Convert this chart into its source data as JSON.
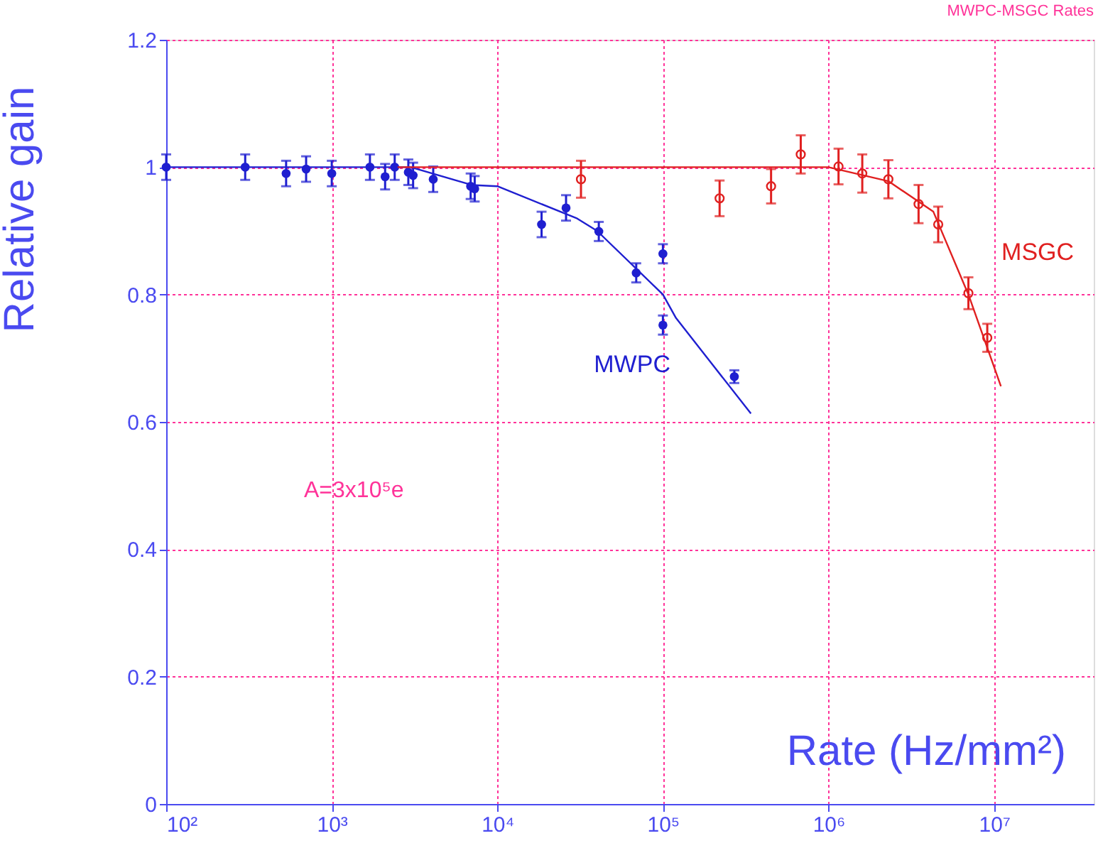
{
  "chart_data": {
    "type": "scatter",
    "title": "MWPC-MSGC Rates",
    "xlabel": "Rate (Hz/mm²)",
    "ylabel": "Relative gain",
    "log": "x",
    "grid": true,
    "legend": false,
    "xlim": [
      100,
      40000000
    ],
    "xticks": [
      {
        "value": 100,
        "label": "10²"
      },
      {
        "value": 1000,
        "label": "10³"
      },
      {
        "value": 10000,
        "label": "10⁴"
      },
      {
        "value": 100000,
        "label": "10⁵"
      },
      {
        "value": 1000000,
        "label": "10⁶"
      },
      {
        "value": 10000000,
        "label": "10⁷"
      }
    ],
    "ylim": [
      0,
      1.2
    ],
    "yticks": [
      {
        "value": 0,
        "label": "0"
      },
      0.2,
      0.4,
      0.6,
      0.8,
      {
        "value": 1,
        "label": "1"
      },
      1.2
    ],
    "annotations": [
      "A=3x10⁵e"
    ],
    "series": [
      {
        "name": "MWPC",
        "color": "#1f1fd0",
        "marker": "circle",
        "x": [
          100,
          300,
          530,
          700,
          1000,
          1700,
          2100,
          2400,
          2900,
          3100,
          4100,
          6900,
          7300,
          18500,
          26000,
          41000,
          69000,
          100000,
          100000,
          270000
        ],
        "values": [
          1.0,
          1.0,
          0.99,
          0.997,
          0.99,
          1.0,
          0.985,
          1.0,
          0.992,
          0.987,
          0.981,
          0.97,
          0.966,
          0.91,
          0.936,
          0.899,
          0.834,
          0.864,
          0.752,
          0.671
        ],
        "errors": [
          0.02,
          0.02,
          0.02,
          0.02,
          0.02,
          0.02,
          0.02,
          0.02,
          0.02,
          0.02,
          0.02,
          0.02,
          0.02,
          0.02,
          0.02,
          0.015,
          0.015,
          0.015,
          0.015,
          0.01
        ]
      },
      {
        "type": "line",
        "color": "#1f1fd0",
        "x": [
          100,
          3000,
          7000,
          10000,
          30000,
          40000,
          100000,
          120000,
          340000
        ],
        "values": [
          1.0,
          1.0,
          0.972,
          0.97,
          0.92,
          0.9,
          0.8,
          0.763,
          0.613
        ]
      },
      {
        "name": "MSGC",
        "color": "#e02020",
        "marker": "circle",
        "x": [
          32000,
          220000,
          450000,
          680000,
          1150000,
          1600000,
          2300000,
          3500000,
          4600000,
          7000000,
          9100000
        ],
        "values": [
          0.981,
          0.951,
          0.97,
          1.02,
          1.001,
          0.99,
          0.981,
          0.942,
          0.91,
          0.802,
          0.732
        ],
        "errors": [
          0.029,
          0.028,
          0.027,
          0.03,
          0.028,
          0.03,
          0.03,
          0.03,
          0.028,
          0.025,
          0.022
        ]
      },
      {
        "type": "line",
        "color": "#e02020",
        "x": [
          2500,
          1000000,
          2300000,
          4300000,
          7000000,
          11000000
        ],
        "values": [
          1.0,
          1.0,
          0.978,
          0.93,
          0.8,
          0.656
        ]
      }
    ]
  }
}
